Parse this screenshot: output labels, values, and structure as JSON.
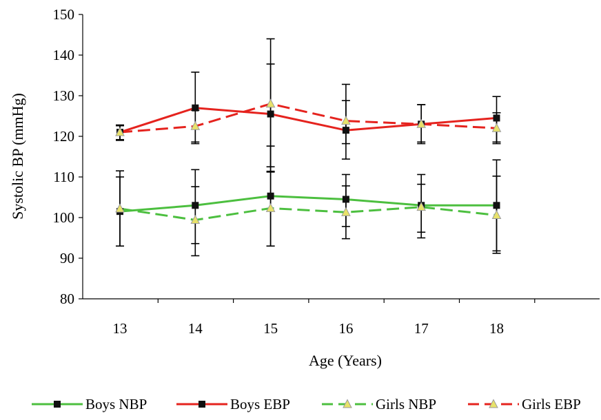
{
  "chart_data": {
    "type": "line",
    "xlabel": "Age (Years)",
    "ylabel": "Systolic BP (mmHg)",
    "ylim": [
      80,
      150
    ],
    "yticks": [
      80,
      90,
      100,
      110,
      120,
      130,
      140,
      150
    ],
    "categories": [
      "13",
      "14",
      "15",
      "16",
      "17",
      "18"
    ],
    "grid": false,
    "legend_position": "bottom",
    "series": [
      {
        "name": "Boys NBP",
        "color": "#4CBF3F",
        "dash": "solid",
        "marker": "square",
        "values": [
          101.5,
          103.0,
          105.3,
          104.5,
          103.0,
          103.0
        ],
        "error_low": [
          93.0,
          93.6,
          93.0,
          97.8,
          95.0,
          91.8
        ],
        "error_high": [
          110.0,
          111.8,
          117.6,
          110.6,
          110.6,
          114.2
        ]
      },
      {
        "name": "Boys EBP",
        "color": "#E5231E",
        "dash": "solid",
        "marker": "square",
        "values": [
          121.0,
          127.0,
          125.5,
          121.5,
          123.0,
          124.5
        ],
        "error_low": [
          119.0,
          118.2,
          112.5,
          114.4,
          118.2,
          118.6
        ],
        "error_high": [
          122.6,
          135.8,
          137.8,
          128.8,
          127.8,
          129.8
        ]
      },
      {
        "name": "Girls NBP",
        "color": "#4CBF3F",
        "dash": "dashed",
        "marker": "triangle",
        "values": [
          102.2,
          99.4,
          102.3,
          101.3,
          102.6,
          100.6
        ],
        "error_low": [
          93.0,
          90.6,
          93.0,
          94.8,
          96.4,
          91.2
        ],
        "error_high": [
          111.5,
          107.6,
          111.4,
          107.8,
          108.2,
          110.2
        ]
      },
      {
        "name": "Girls EBP",
        "color": "#E5231E",
        "dash": "dashed",
        "marker": "triangle",
        "values": [
          121.0,
          122.5,
          128.0,
          123.8,
          123.0,
          122.0
        ],
        "error_low": [
          119.2,
          118.6,
          111.2,
          118.2,
          118.6,
          118.2
        ],
        "error_high": [
          122.8,
          126.4,
          144.0,
          132.8,
          127.8,
          125.8
        ]
      }
    ]
  },
  "legend": {
    "items": [
      "Boys NBP",
      "Boys EBP",
      "Girls NBP",
      "Girls EBP"
    ]
  }
}
